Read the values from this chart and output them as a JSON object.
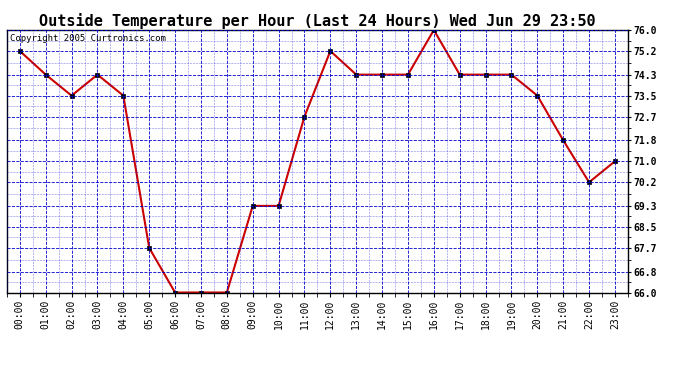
{
  "title": "Outside Temperature per Hour (Last 24 Hours) Wed Jun 29 23:50",
  "copyright": "Copyright 2005 Curtronics.com",
  "x_labels": [
    "00:00",
    "01:00",
    "02:00",
    "03:00",
    "04:00",
    "05:00",
    "06:00",
    "07:00",
    "08:00",
    "09:00",
    "10:00",
    "11:00",
    "12:00",
    "13:00",
    "14:00",
    "15:00",
    "16:00",
    "17:00",
    "18:00",
    "19:00",
    "20:00",
    "21:00",
    "22:00",
    "23:00"
  ],
  "y_values": [
    75.2,
    74.3,
    73.5,
    74.3,
    73.5,
    67.7,
    66.0,
    66.0,
    66.0,
    69.3,
    69.3,
    72.7,
    75.2,
    74.3,
    74.3,
    74.3,
    76.0,
    74.3,
    74.3,
    74.3,
    73.5,
    71.8,
    70.2,
    71.0
  ],
  "ylim": [
    66.0,
    76.0
  ],
  "yticks": [
    66.0,
    66.8,
    67.7,
    68.5,
    69.3,
    70.2,
    71.0,
    71.8,
    72.7,
    73.5,
    74.3,
    75.2,
    76.0
  ],
  "line_color": "#cc0000",
  "marker_color": "#000000",
  "bg_color": "#ffffff",
  "grid_color": "#0000cc",
  "title_fontsize": 11,
  "tick_fontsize": 7,
  "copyright_fontsize": 6.5
}
